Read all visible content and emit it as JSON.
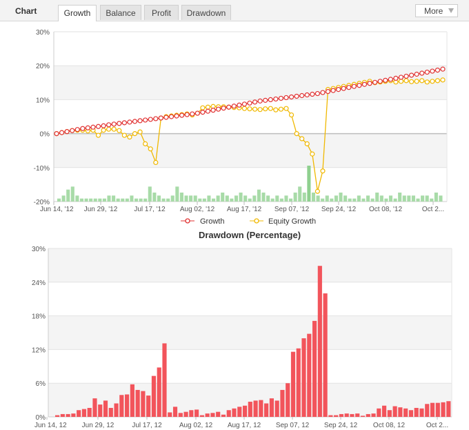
{
  "header": {
    "chart_label": "Chart",
    "tabs": [
      {
        "label": "Growth",
        "active": true
      },
      {
        "label": "Balance",
        "active": false
      },
      {
        "label": "Profit",
        "active": false
      },
      {
        "label": "Drawdown",
        "active": false
      }
    ],
    "more_label": "More"
  },
  "colors": {
    "growth": "#e03030",
    "equity": "#f0b800",
    "volume_bar": "#a8dba8",
    "volume_bar_highlight": "#8fd08f",
    "drawdown_bar": "#f2545b"
  },
  "chart_data": [
    {
      "type": "line",
      "title": "",
      "x_tick_labels": [
        "Jun 14, '12",
        "Jun 29, '12",
        "Jul 17, '12",
        "Aug 02, '12",
        "Aug 17, '12",
        "Sep 07, '12",
        "Sep 24, '12",
        "Oct 08, '12",
        "Oct 2..."
      ],
      "y_tick_labels": [
        "30%",
        "20%",
        "10%",
        "0%",
        "-10%",
        "-20%"
      ],
      "ylim": [
        -20,
        30
      ],
      "grid": true,
      "legend_position": "bottom-center",
      "series": [
        {
          "name": "Growth",
          "marker": "circle",
          "values": [
            0.0,
            0.3,
            0.6,
            0.9,
            1.2,
            1.5,
            1.7,
            1.9,
            2.1,
            2.3,
            2.6,
            2.8,
            3.0,
            3.2,
            3.4,
            3.6,
            3.8,
            4.0,
            4.2,
            4.4,
            4.6,
            4.8,
            5.0,
            5.2,
            5.4,
            5.6,
            5.8,
            6.0,
            6.3,
            6.6,
            6.9,
            7.2,
            7.5,
            7.8,
            8.1,
            8.4,
            8.7,
            9.0,
            9.3,
            9.6,
            9.8,
            10.0,
            10.2,
            10.4,
            10.6,
            10.8,
            11.0,
            11.2,
            11.4,
            11.6,
            11.8,
            12.1,
            12.4,
            12.7,
            13.0,
            13.3,
            13.6,
            13.9,
            14.2,
            14.5,
            14.8,
            15.1,
            15.4,
            15.7,
            16.0,
            16.3,
            16.6,
            16.9,
            17.2,
            17.5,
            17.8,
            18.1,
            18.4,
            18.7,
            19.0
          ]
        },
        {
          "name": "Equity Growth",
          "marker": "circle",
          "values": [
            0.0,
            0.3,
            0.6,
            0.9,
            1.0,
            1.0,
            0.8,
            1.0,
            -0.5,
            1.0,
            1.3,
            1.3,
            0.9,
            -0.5,
            -1.0,
            0.0,
            0.5,
            -3.0,
            -4.5,
            -8.5,
            4.6,
            5.0,
            5.2,
            5.4,
            5.6,
            5.8,
            5.5,
            6.0,
            7.6,
            7.8,
            8.0,
            7.9,
            7.9,
            7.8,
            7.7,
            7.6,
            7.4,
            7.3,
            7.2,
            7.1,
            7.3,
            7.4,
            7.0,
            7.2,
            7.4,
            5.5,
            0.0,
            -1.5,
            -3.0,
            -6.0,
            -17.0,
            -11.0,
            13.0,
            13.3,
            13.6,
            13.9,
            14.2,
            14.5,
            14.8,
            15.1,
            15.4,
            15.0,
            15.2,
            15.4,
            15.6,
            15.2,
            15.4,
            15.6,
            15.3,
            15.4,
            15.6,
            15.2,
            15.4,
            15.6,
            15.8
          ]
        }
      ],
      "volume_bars": [
        1,
        2,
        4,
        5,
        2,
        1,
        1,
        1,
        1,
        1,
        1,
        2,
        2,
        1,
        1,
        1,
        2,
        1,
        1,
        1,
        5,
        3,
        2,
        1,
        1,
        2,
        5,
        3,
        2,
        2,
        2,
        1,
        1,
        2,
        1,
        2,
        3,
        2,
        1,
        2,
        3,
        2,
        1,
        2,
        4,
        3,
        2,
        1,
        2,
        1,
        2,
        1,
        3,
        5,
        3,
        12,
        3,
        2,
        1,
        2,
        1,
        2,
        3,
        2,
        1,
        1,
        2,
        1,
        2,
        1,
        3,
        2,
        1,
        2,
        1,
        3,
        2,
        2,
        2,
        1,
        2,
        2,
        1,
        3,
        2
      ]
    },
    {
      "type": "bar",
      "title": "Drawdown (Percentage)",
      "x_tick_labels": [
        "Jun 14, 12",
        "Jun 29, 12",
        "Jul 17, 12",
        "Aug 02, 12",
        "Aug 17, 12",
        "Sep 07, 12",
        "Sep 24, 12",
        "Oct 08, 12",
        "Oct 2..."
      ],
      "y_tick_labels": [
        "30%",
        "24%",
        "18%",
        "12%",
        "6%",
        "0%"
      ],
      "ylim": [
        0,
        30
      ],
      "grid": true,
      "values": [
        0.3,
        0.5,
        0.5,
        0.6,
        1.2,
        1.4,
        1.6,
        3.3,
        2.2,
        2.9,
        1.6,
        2.4,
        3.9,
        4.0,
        5.8,
        4.8,
        4.6,
        3.8,
        7.3,
        8.8,
        13.1,
        0.8,
        1.8,
        0.7,
        0.9,
        1.2,
        1.3,
        0.3,
        0.6,
        0.7,
        0.9,
        0.4,
        1.2,
        1.5,
        1.8,
        2.0,
        2.7,
        2.9,
        3.0,
        2.4,
        3.3,
        2.9,
        4.8,
        6.0,
        11.6,
        12.2,
        14.0,
        14.8,
        17.1,
        26.9,
        22.0,
        0.3,
        0.3,
        0.5,
        0.6,
        0.5,
        0.6,
        0.2,
        0.5,
        0.6,
        1.5,
        2.0,
        1.2,
        1.9,
        1.7,
        1.5,
        1.2,
        1.6,
        1.5,
        2.3,
        2.5,
        2.5,
        2.6,
        2.8
      ]
    }
  ]
}
